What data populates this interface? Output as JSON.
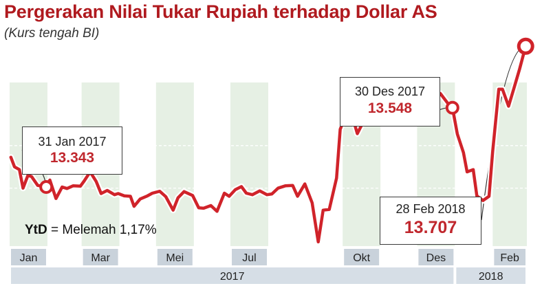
{
  "title": "Pergerakan Nilai Tukar Rupiah terhadap Dollar AS",
  "subtitle": "(Kurs tengah BI)",
  "colors": {
    "line": "#d0232a",
    "title": "#b01a1f",
    "shade": "#e6f0e4",
    "month_band": "#c9d2db",
    "year_band": "#d6dee6"
  },
  "ytd": {
    "label": "YtD",
    "eq": " = ",
    "text": "Melemah 1,17%"
  },
  "callouts": [
    {
      "date": "31 Jan 2017",
      "value": "13.343"
    },
    {
      "date": "30 Des 2017",
      "value": "13.548"
    },
    {
      "date": "28 Feb 2018",
      "value": "13.707"
    }
  ],
  "chart_data": {
    "type": "line",
    "title": "Pergerakan Nilai Tukar Rupiah terhadap Dollar AS",
    "subtitle": "(Kurs tengah BI)",
    "series": [
      {
        "values": [
          [
            "2017-01-02",
            13420
          ],
          [
            "2017-01-05",
            13395
          ],
          [
            "2017-01-09",
            13388
          ],
          [
            "2017-01-12",
            13340
          ],
          [
            "2017-01-16",
            13373
          ],
          [
            "2017-01-19",
            13370
          ],
          [
            "2017-01-24",
            13347
          ],
          [
            "2017-01-31",
            13343
          ],
          [
            "2017-02-03",
            13361
          ],
          [
            "2017-02-08",
            13313
          ],
          [
            "2017-02-13",
            13343
          ],
          [
            "2017-02-17",
            13339
          ],
          [
            "2017-02-22",
            13346
          ],
          [
            "2017-02-28",
            13345
          ],
          [
            "2017-03-03",
            13358
          ],
          [
            "2017-03-08",
            13382
          ],
          [
            "2017-03-13",
            13357
          ],
          [
            "2017-03-17",
            13326
          ],
          [
            "2017-03-22",
            13334
          ],
          [
            "2017-03-28",
            13323
          ],
          [
            "2017-03-31",
            13326
          ],
          [
            "2017-04-05",
            13320
          ],
          [
            "2017-04-10",
            13319
          ],
          [
            "2017-04-13",
            13293
          ],
          [
            "2017-04-18",
            13312
          ],
          [
            "2017-04-24",
            13320
          ],
          [
            "2017-04-28",
            13327
          ],
          [
            "2017-05-04",
            13332
          ],
          [
            "2017-05-09",
            13318
          ],
          [
            "2017-05-15",
            13283
          ],
          [
            "2017-05-19",
            13315
          ],
          [
            "2017-05-24",
            13331
          ],
          [
            "2017-05-31",
            13321
          ],
          [
            "2017-06-05",
            13289
          ],
          [
            "2017-06-09",
            13288
          ],
          [
            "2017-06-15",
            13295
          ],
          [
            "2017-06-20",
            13280
          ],
          [
            "2017-06-26",
            13327
          ],
          [
            "2017-06-30",
            13319
          ],
          [
            "2017-07-05",
            13336
          ],
          [
            "2017-07-10",
            13344
          ],
          [
            "2017-07-14",
            13327
          ],
          [
            "2017-07-19",
            13323
          ],
          [
            "2017-07-25",
            13333
          ],
          [
            "2017-07-31",
            13323
          ],
          [
            "2017-08-04",
            13325
          ],
          [
            "2017-08-09",
            13340
          ],
          [
            "2017-08-15",
            13346
          ],
          [
            "2017-08-21",
            13347
          ],
          [
            "2017-08-25",
            13319
          ],
          [
            "2017-08-31",
            13351
          ],
          [
            "2017-09-06",
            13302
          ],
          [
            "2017-09-11",
            13201
          ],
          [
            "2017-09-15",
            13283
          ],
          [
            "2017-09-20",
            13285
          ],
          [
            "2017-09-26",
            13366
          ],
          [
            "2017-09-29",
            13492
          ],
          [
            "2017-10-04",
            13534
          ],
          [
            "2017-10-09",
            13525
          ],
          [
            "2017-10-13",
            13481
          ],
          [
            "2017-10-18",
            13512
          ],
          [
            "2017-10-24",
            13588
          ],
          [
            "2017-10-27",
            13573
          ],
          [
            "2017-11-01",
            13534
          ],
          [
            "2017-11-06",
            13524
          ],
          [
            "2017-11-10",
            13513
          ],
          [
            "2017-11-16",
            13530
          ],
          [
            "2017-11-21",
            13532
          ],
          [
            "2017-11-27",
            13522
          ],
          [
            "2017-11-30",
            13527
          ],
          [
            "2017-12-05",
            13551
          ],
          [
            "2017-12-11",
            13568
          ],
          [
            "2017-12-15",
            13563
          ],
          [
            "2017-12-20",
            13585
          ],
          [
            "2017-12-27",
            13556
          ],
          [
            "2017-12-30",
            13548
          ],
          [
            "2018-01-03",
            13480
          ],
          [
            "2018-01-08",
            13432
          ],
          [
            "2018-01-11",
            13382
          ],
          [
            "2018-01-16",
            13388
          ],
          [
            "2018-01-19",
            13320
          ],
          [
            "2018-01-24",
            13308
          ],
          [
            "2018-01-29",
            13319
          ],
          [
            "2018-02-01",
            13435
          ],
          [
            "2018-02-06",
            13596
          ],
          [
            "2018-02-09",
            13596
          ],
          [
            "2018-02-14",
            13552
          ],
          [
            "2018-02-19",
            13605
          ],
          [
            "2018-02-23",
            13648
          ],
          [
            "2018-02-28",
            13707
          ]
        ]
      }
    ],
    "ylim": [
      13190,
      13720
    ],
    "xlim": [
      "2017-01-01",
      "2018-03-01"
    ],
    "ytick_grid": [
      13340,
      13450
    ],
    "grid": true,
    "legend": "none",
    "annotations": [
      {
        "x": "2017-01-31",
        "y": 13343,
        "label": "31 Jan 2017",
        "value": "13.343"
      },
      {
        "x": "2017-12-30",
        "y": 13548,
        "label": "30 Des 2017",
        "value": "13.548"
      },
      {
        "x": "2018-02-28",
        "y": 13707,
        "label": "28 Feb 2018",
        "value": "13.707"
      }
    ],
    "x_month_labels": [
      {
        "from": "2017-01-01",
        "to": "2017-02-01",
        "label": "Jan"
      },
      {
        "from": "2017-03-01",
        "to": "2017-04-01",
        "label": "Mar"
      },
      {
        "from": "2017-05-01",
        "to": "2017-06-01",
        "label": "Mei"
      },
      {
        "from": "2017-07-01",
        "to": "2017-08-01",
        "label": "Jul"
      },
      {
        "from": "2017-10-01",
        "to": "2017-11-01",
        "label": "Okt"
      },
      {
        "from": "2017-12-01",
        "to": "2018-01-01",
        "label": "Des"
      },
      {
        "from": "2018-02-01",
        "to": "2018-03-01",
        "label": "Feb"
      }
    ],
    "x_year_labels": [
      {
        "from": "2017-01-01",
        "to": "2018-01-01",
        "label": "2017"
      },
      {
        "from": "2018-01-01",
        "to": "2018-03-01",
        "label": "2018"
      }
    ],
    "shaded_months": [
      [
        "2017-01-01",
        "2017-02-01"
      ],
      [
        "2017-03-01",
        "2017-04-01"
      ],
      [
        "2017-05-01",
        "2017-06-01"
      ],
      [
        "2017-07-01",
        "2017-08-01"
      ],
      [
        "2017-10-01",
        "2017-11-01"
      ],
      [
        "2017-12-01",
        "2018-01-01"
      ],
      [
        "2018-02-01",
        "2018-03-01"
      ]
    ]
  }
}
